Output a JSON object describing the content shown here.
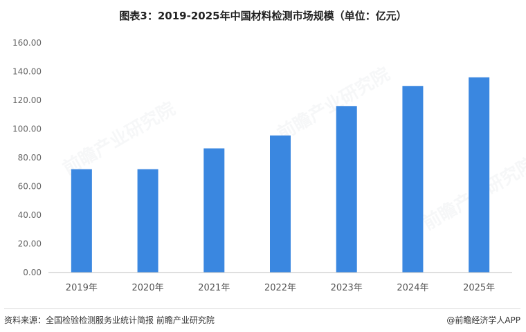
{
  "title": "图表3：2019-2025年中国材料检测市场规模（单位：亿元）",
  "watermark": "前瞻产业研究院",
  "footer": {
    "source": "资料来源：全国检验检测服务业统计简报  前瞻产业研究院",
    "brand": "@前瞻经济学人APP"
  },
  "colors": {
    "bar": "#3a87e0",
    "axis": "#bfbfbf"
  },
  "chart_data": {
    "type": "bar",
    "categories": [
      "2019年",
      "2020年",
      "2021年",
      "2022年",
      "2023年",
      "2024年",
      "2025年"
    ],
    "values": [
      72.0,
      72.0,
      86.5,
      95.5,
      116.0,
      130.0,
      136.0
    ],
    "yticks": [
      "0.00",
      "20.00",
      "40.00",
      "60.00",
      "80.00",
      "100.00",
      "120.00",
      "140.00",
      "160.00"
    ],
    "ylim": [
      0,
      160
    ],
    "grid": false,
    "legend": "none"
  }
}
